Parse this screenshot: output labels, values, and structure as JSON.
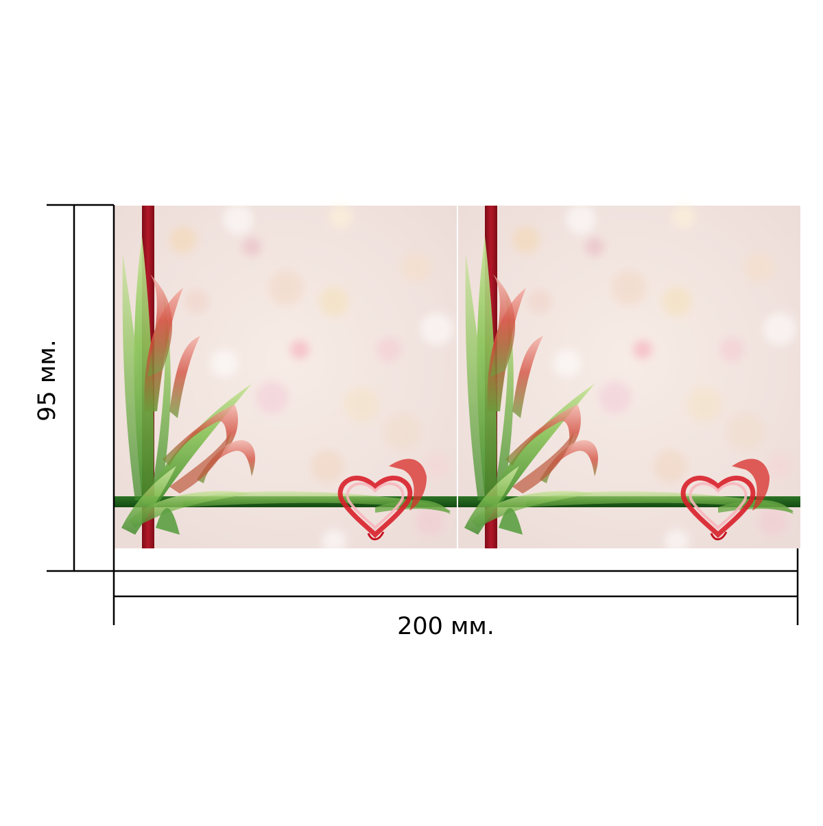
{
  "dimensions": {
    "height_label": "95 мм.",
    "width_label": "200 мм."
  },
  "panels": [
    {
      "name": "panel-left",
      "decor": [
        "red-vertical-ribbon",
        "green-horizontal-ribbon",
        "grass-leaves",
        "heart"
      ]
    },
    {
      "name": "panel-right",
      "decor": [
        "red-vertical-ribbon",
        "green-horizontal-ribbon",
        "grass-leaves",
        "heart"
      ]
    }
  ],
  "colors": {
    "background": "#f3e6e2",
    "red_ribbon": "#9e1220",
    "green_ribbon": "#1f5a1a",
    "heart": "#d8202a",
    "leaf": "#7fb84a",
    "dimension_line": "#000000"
  }
}
